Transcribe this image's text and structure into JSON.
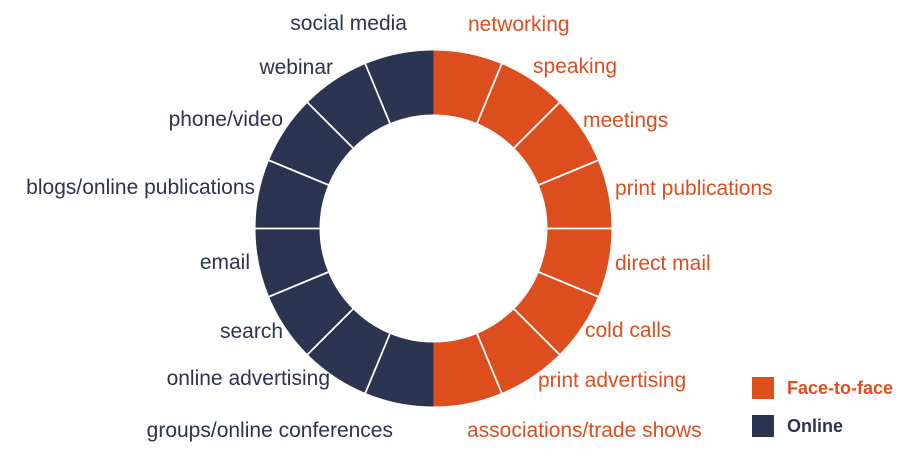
{
  "chart_data": {
    "type": "pie",
    "subtype": "donut",
    "title": "",
    "legend_position": "bottom-right",
    "divider_color": "#ffffff",
    "segments_equal": true,
    "groups": [
      {
        "name": "Face-to-face",
        "color": "#DC4E1E",
        "side": "right",
        "segments": [
          "networking",
          "speaking",
          "meetings",
          "print publications",
          "direct mail",
          "cold calls",
          "print advertising",
          "associations/trade shows"
        ],
        "values": [
          1,
          1,
          1,
          1,
          1,
          1,
          1,
          1
        ]
      },
      {
        "name": "Online",
        "color": "#2B3450",
        "side": "left",
        "segments": [
          "social media",
          "webinar",
          "phone/video",
          "blogs/online publications",
          "email",
          "search",
          "online advertising",
          "groups/online conferences"
        ],
        "values": [
          1,
          1,
          1,
          1,
          1,
          1,
          1,
          1
        ]
      }
    ]
  }
}
